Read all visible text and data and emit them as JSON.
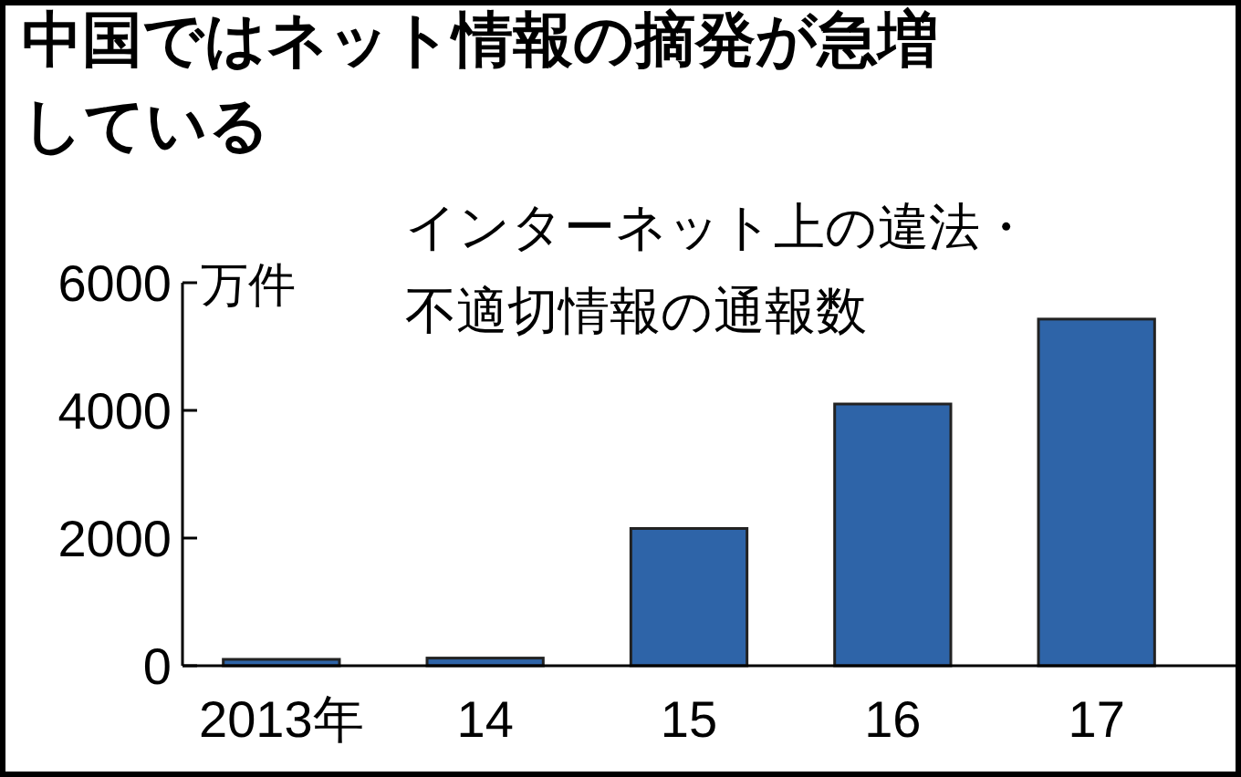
{
  "chart_data": {
    "type": "bar",
    "title": "中国ではネット情報の摘発が急増している",
    "subtitle": "インターネット上の違法・不適切情報の通報数",
    "ylabel": "万件",
    "categories": [
      "2013年",
      "14",
      "15",
      "16",
      "17"
    ],
    "values": [
      100,
      120,
      2150,
      4100,
      5430
    ],
    "color": "#2e64a8",
    "ylim": [
      0,
      6000
    ],
    "yticks": [
      0,
      2000,
      4000,
      6000
    ],
    "grid": false
  }
}
